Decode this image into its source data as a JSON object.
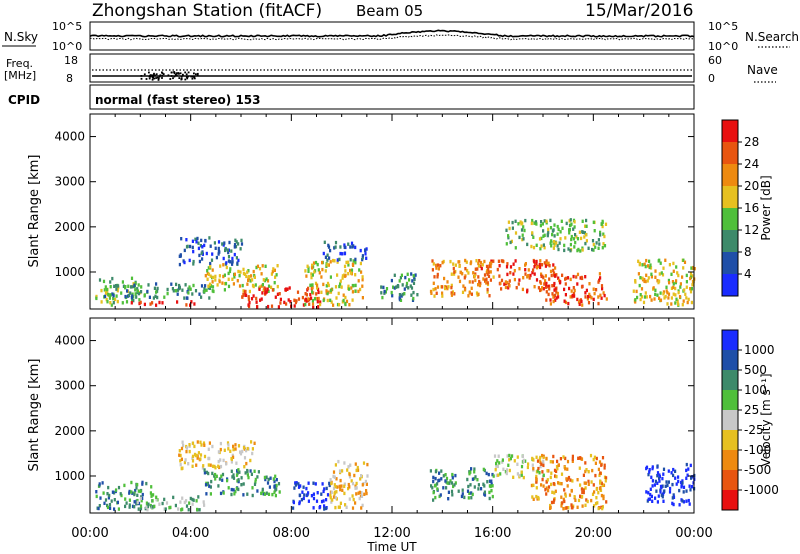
{
  "header": {
    "station": "Zhongshan Station (fitACF)",
    "beam": "Beam 05",
    "date": "15/Mar/2016"
  },
  "strip": {
    "nsky_label": "N.Sky",
    "nsky_top": "10^5",
    "nsky_bottom": "10^0",
    "nsearch_label": "N.Search",
    "nsearch_top": "10^5",
    "nsearch_bottom": "10^0",
    "freq_label": "Freq.",
    "freq_unit": "[MHz]",
    "freq_top": "18",
    "freq_bottom": "8",
    "nave_label": "Nave",
    "nave_top": "60",
    "nave_bottom": "0",
    "cpid_label": "CPID",
    "cpid_value": "normal (fast stereo) 153"
  },
  "chart_data": [
    {
      "type": "heatmap",
      "name": "power",
      "ylabel": "Slant Range [km]",
      "xlabel": "Time UT",
      "xlim": [
        0,
        24
      ],
      "ylim": [
        180,
        4500
      ],
      "yticks": [
        "1000",
        "2000",
        "3000",
        "4000"
      ],
      "colorbar": {
        "label": "Power [dB]",
        "ticks": [
          "4",
          "8",
          "12",
          "16",
          "20",
          "24",
          "28"
        ],
        "colors": [
          "#1a2cff",
          "#1f4fa8",
          "#3d8a6a",
          "#4fbf3a",
          "#e6c020",
          "#ee8a10",
          "#e85510",
          "#e81010"
        ]
      },
      "regions": [
        {
          "t0": 0.2,
          "t1": 2.0,
          "r0": 300,
          "r1": 900,
          "level": 3
        },
        {
          "t0": 0.5,
          "t1": 4.8,
          "r0": 450,
          "r1": 800,
          "level": 2
        },
        {
          "t0": 1.6,
          "t1": 4.2,
          "r0": 280,
          "r1": 380,
          "level": 7
        },
        {
          "t0": 3.5,
          "t1": 6.0,
          "r0": 1200,
          "r1": 1800,
          "level": 1
        },
        {
          "t0": 4.5,
          "t1": 7.5,
          "r0": 600,
          "r1": 1200,
          "level": 4
        },
        {
          "t0": 6.0,
          "t1": 9.2,
          "r0": 250,
          "r1": 700,
          "level": 7
        },
        {
          "t0": 8.5,
          "t1": 10.8,
          "r0": 300,
          "r1": 1300,
          "level": 4
        },
        {
          "t0": 9.2,
          "t1": 11.0,
          "r0": 1300,
          "r1": 1700,
          "level": 1
        },
        {
          "t0": 11.5,
          "t1": 13.0,
          "r0": 400,
          "r1": 1000,
          "level": 2
        },
        {
          "t0": 13.5,
          "t1": 16.0,
          "r0": 500,
          "r1": 1300,
          "level": 5
        },
        {
          "t0": 15.5,
          "t1": 18.5,
          "r0": 600,
          "r1": 1300,
          "level": 6
        },
        {
          "t0": 16.5,
          "t1": 20.5,
          "r0": 1500,
          "r1": 2200,
          "level": 3
        },
        {
          "t0": 18.0,
          "t1": 20.5,
          "r0": 300,
          "r1": 1000,
          "level": 6
        },
        {
          "t0": 21.5,
          "t1": 24.0,
          "r0": 300,
          "r1": 1300,
          "level": 4
        }
      ]
    },
    {
      "type": "heatmap",
      "name": "velocity",
      "ylabel": "Slant Range [km]",
      "xlabel": "Time UT",
      "xlim": [
        0,
        24
      ],
      "ylim": [
        180,
        4500
      ],
      "yticks": [
        "1000",
        "2000",
        "3000",
        "4000"
      ],
      "colorbar": {
        "label": "Velocity [m s⁻¹]",
        "ticks": [
          "1000",
          "500",
          "100",
          "25",
          "-25",
          "-100",
          "-500",
          "-1000"
        ],
        "colors": [
          "#1a2cff",
          "#1f4fa8",
          "#3d8a6a",
          "#4fbf3a",
          "#c8c8c8",
          "#e6c020",
          "#ee8a10",
          "#e85510",
          "#e81010"
        ]
      },
      "regions": [
        {
          "t0": 0.2,
          "t1": 2.5,
          "r0": 300,
          "r1": 900,
          "level": 2
        },
        {
          "t0": 1.5,
          "t1": 4.5,
          "r0": 280,
          "r1": 600,
          "level": 3
        },
        {
          "t0": 3.5,
          "t1": 6.5,
          "r0": 1200,
          "r1": 1800,
          "level": 5
        },
        {
          "t0": 4.5,
          "t1": 7.5,
          "r0": 600,
          "r1": 1200,
          "level": 2
        },
        {
          "t0": 8.0,
          "t1": 9.5,
          "r0": 300,
          "r1": 900,
          "level": 0
        },
        {
          "t0": 9.5,
          "t1": 11.0,
          "r0": 300,
          "r1": 1400,
          "level": 5
        },
        {
          "t0": 13.5,
          "t1": 16.0,
          "r0": 500,
          "r1": 1200,
          "level": 2
        },
        {
          "t0": 16.0,
          "t1": 18.0,
          "r0": 1000,
          "r1": 1500,
          "level": 4
        },
        {
          "t0": 17.5,
          "t1": 20.5,
          "r0": 300,
          "r1": 1500,
          "level": 6
        },
        {
          "t0": 22.0,
          "t1": 24.0,
          "r0": 400,
          "r1": 1300,
          "level": 0
        }
      ]
    }
  ],
  "x_axis": {
    "ticks": [
      "00:00",
      "04:00",
      "08:00",
      "12:00",
      "16:00",
      "20:00",
      "00:00"
    ],
    "label": "Time UT"
  }
}
